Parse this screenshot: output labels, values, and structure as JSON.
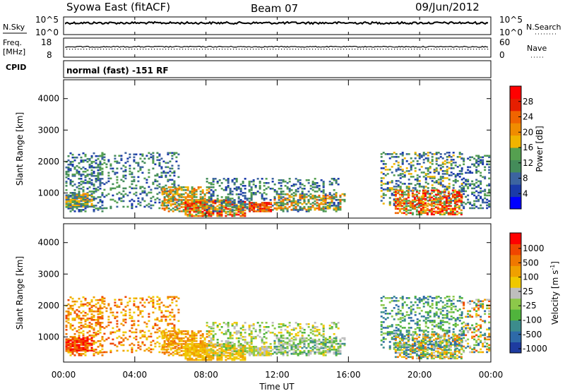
{
  "header": {
    "title": "Syowa East (fitACF)",
    "beam": "Beam 07",
    "date": "09/Jun/2012"
  },
  "panels": {
    "nsky": {
      "label": "N.Sky",
      "ticks": [
        "10^5",
        "10^0"
      ]
    },
    "nsearch": {
      "label": "N.Search",
      "ticks": [
        "10^5",
        "10^0"
      ]
    },
    "freq": {
      "label": "Freq.",
      "unit": "[MHz]",
      "ticks": [
        "18",
        "8"
      ]
    },
    "nave": {
      "label": "Nave",
      "ticks": [
        "60",
        "0"
      ]
    },
    "cpid": {
      "label": "CPID",
      "text": "normal (fast) -151 RF"
    }
  },
  "chart_data": [
    {
      "type": "heatmap",
      "panel": "power",
      "ylabel": "Slant Range [km]",
      "xlabel": "",
      "yticks": [
        1000,
        2000,
        3000,
        4000
      ],
      "ylim": [
        200,
        4600
      ],
      "xlim": [
        "00:00",
        "24:00"
      ],
      "colorbar": {
        "label": "Power [dB]",
        "ticks": [
          "4",
          "8",
          "12",
          "16",
          "20",
          "24",
          "28"
        ],
        "colors": [
          "#0000ff",
          "#1a3aaa",
          "#3c64a0",
          "#448c5a",
          "#55a050",
          "#f0b400",
          "#f08c00",
          "#f06400",
          "#e61e00",
          "#ff0000"
        ]
      }
    },
    {
      "type": "heatmap",
      "panel": "velocity",
      "ylabel": "Slant Range [km]",
      "xlabel": "Time UT",
      "yticks": [
        1000,
        2000,
        3000,
        4000
      ],
      "ylim": [
        200,
        4600
      ],
      "xticks": [
        "00:00",
        "04:00",
        "08:00",
        "12:00",
        "16:00",
        "20:00",
        "00:00"
      ],
      "colorbar": {
        "label": "Velocity [m s",
        "label_sup": "-1",
        "label_end": "]",
        "ticks": [
          "1000",
          "500",
          "100",
          "25",
          "-25",
          "-100",
          "-500",
          "-1000"
        ],
        "colors": [
          "#1e3ca0",
          "#2e6aa8",
          "#3c8c8c",
          "#50b43c",
          "#8cc84a",
          "#bebebe",
          "#f0c800",
          "#f0a000",
          "#f07800",
          "#f04600",
          "#ff0000"
        ]
      }
    }
  ]
}
